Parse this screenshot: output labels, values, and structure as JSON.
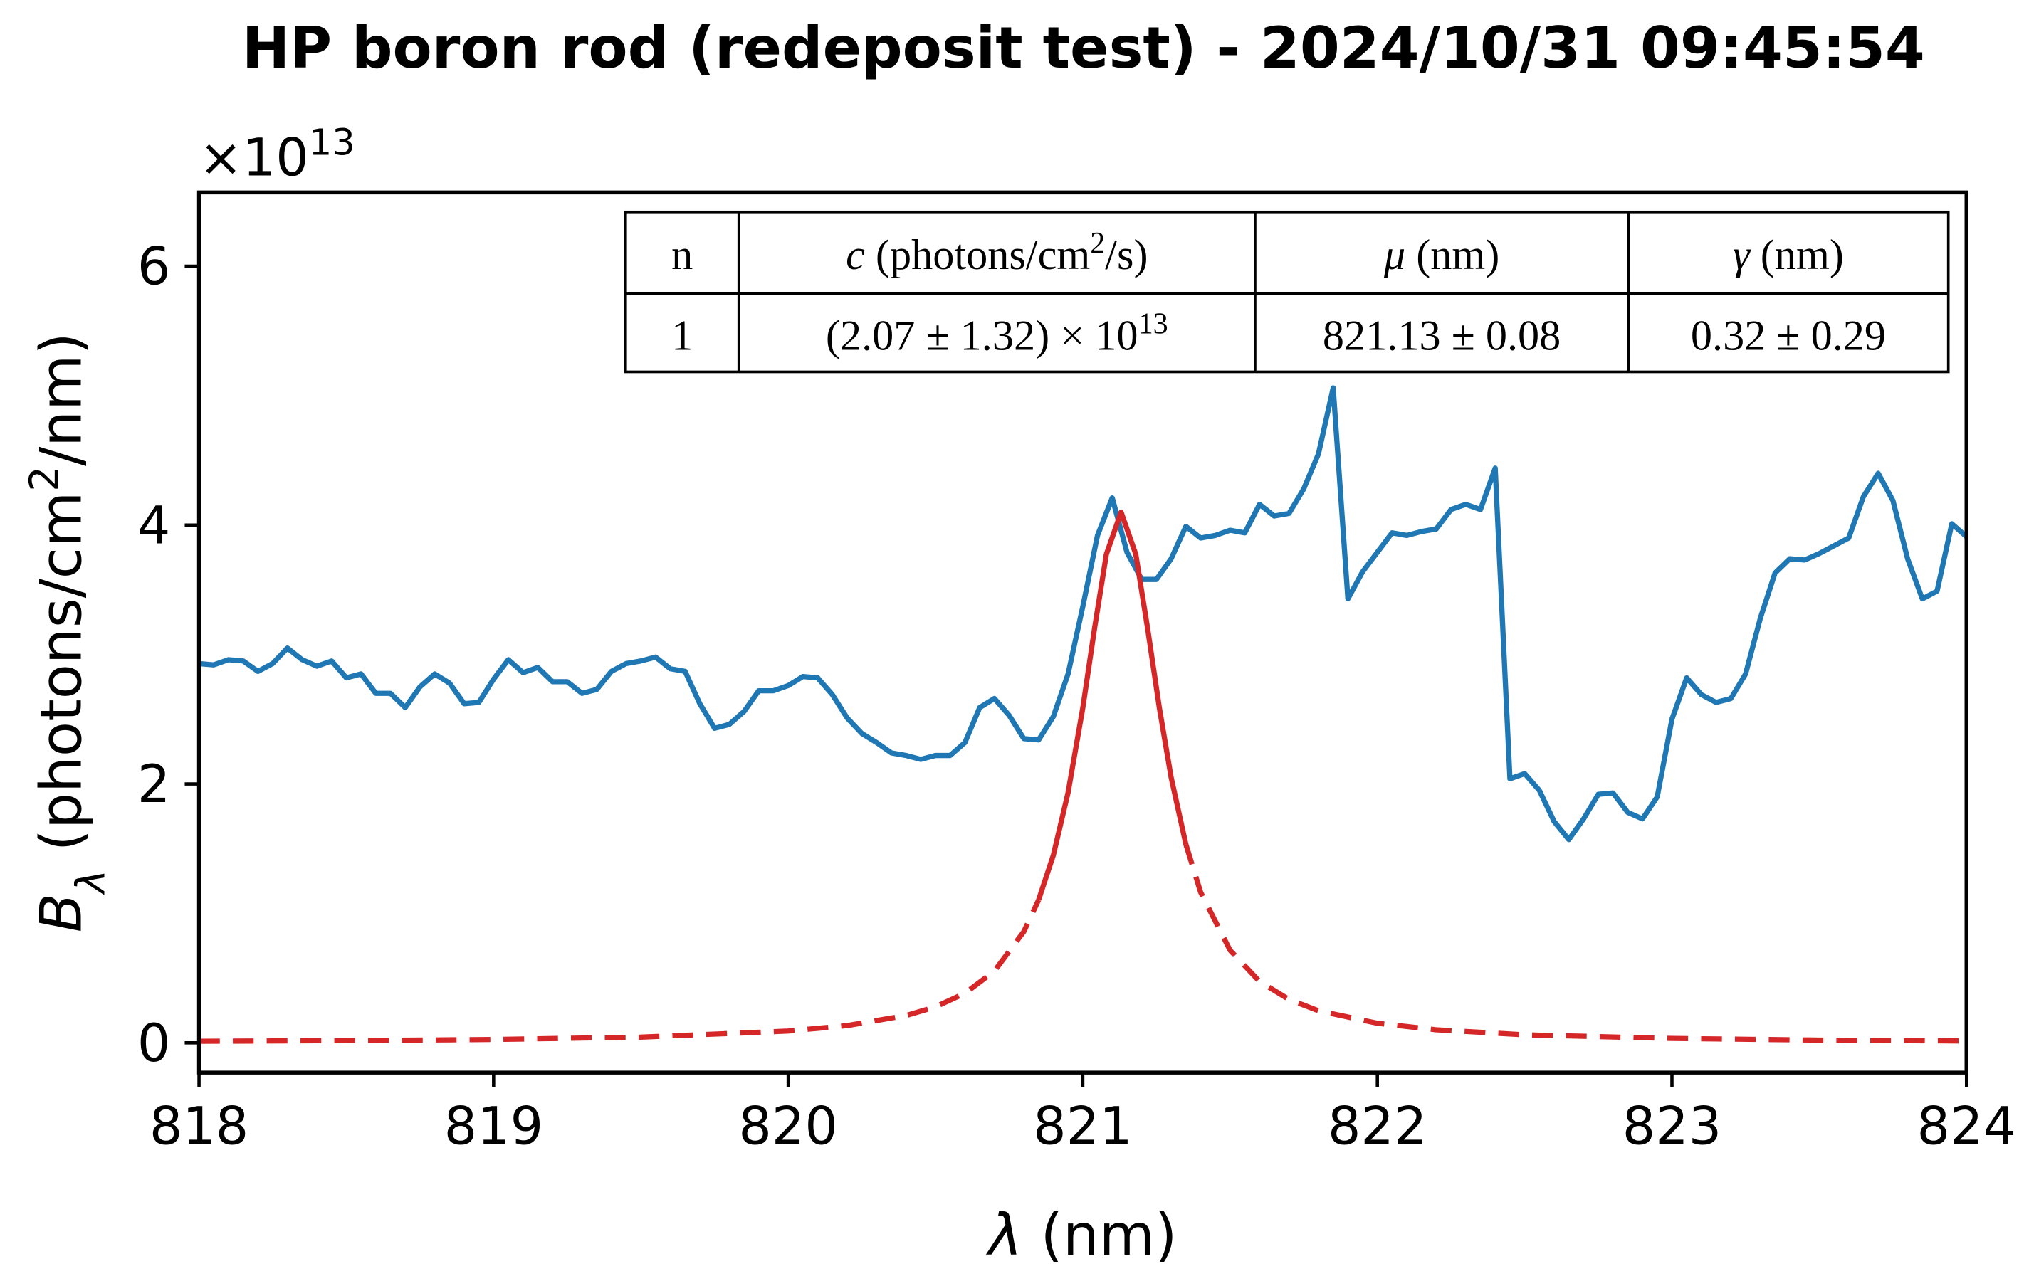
{
  "chart_data": {
    "type": "line",
    "title": "HP boron rod (redeposit test) - 2024/10/31 09:45:54",
    "x_label": {
      "symbol": "λ",
      "text": " (nm)"
    },
    "y_label": {
      "symbol": "B",
      "sub": "λ",
      "pre": " (photons/cm",
      "sup": "2",
      "post": "/nm)"
    },
    "y_offset": {
      "text": "×10",
      "sup": "13"
    },
    "xlim": [
      818,
      824
    ],
    "xticks": [
      818,
      819,
      820,
      821,
      822,
      823,
      824
    ],
    "ylim": [
      -0.23,
      6.57
    ],
    "yticks": [
      0,
      2,
      4,
      6
    ],
    "series": [
      {
        "color": "#1f77b4",
        "dash": false,
        "x": [
          818,
          818.05,
          818.1,
          818.15,
          818.2,
          818.25,
          818.3,
          818.35,
          818.4,
          818.45,
          818.5,
          818.55,
          818.6,
          818.65,
          818.7,
          818.75,
          818.8,
          818.85,
          818.9,
          818.95,
          819,
          819.05,
          819.1,
          819.15,
          819.2,
          819.25,
          819.3,
          819.35,
          819.4,
          819.45,
          819.5,
          819.55,
          819.6,
          819.65,
          819.7,
          819.75,
          819.8,
          819.85,
          819.9,
          819.95,
          820,
          820.05,
          820.1,
          820.15,
          820.2,
          820.25,
          820.3,
          820.35,
          820.4,
          820.45,
          820.5,
          820.55,
          820.6,
          820.65,
          820.7,
          820.75,
          820.8,
          820.85,
          820.9,
          820.95,
          821,
          821.05,
          821.1,
          821.15,
          821.2,
          821.25,
          821.3,
          821.35,
          821.4,
          821.45,
          821.5,
          821.55,
          821.6,
          821.65,
          821.7,
          821.75,
          821.8,
          821.85,
          821.9,
          821.95,
          822,
          822.05,
          822.1,
          822.15,
          822.2,
          822.25,
          822.3,
          822.35,
          822.4,
          822.45,
          822.5,
          822.55,
          822.6,
          822.65,
          822.7,
          822.75,
          822.8,
          822.85,
          822.9,
          822.95,
          823,
          823.05,
          823.1,
          823.15,
          823.2,
          823.25,
          823.3,
          823.35,
          823.4,
          823.45,
          823.5,
          823.55,
          823.6,
          823.65,
          823.7,
          823.75,
          823.8,
          823.85,
          823.9,
          823.95,
          824
        ],
        "values": [
          2.93,
          2.92,
          2.96,
          2.95,
          2.87,
          2.93,
          3.05,
          2.96,
          2.91,
          2.95,
          2.82,
          2.85,
          2.7,
          2.7,
          2.59,
          2.75,
          2.85,
          2.78,
          2.62,
          2.63,
          2.81,
          2.96,
          2.86,
          2.9,
          2.79,
          2.79,
          2.7,
          2.73,
          2.87,
          2.93,
          2.95,
          2.98,
          2.89,
          2.87,
          2.62,
          2.43,
          2.46,
          2.56,
          2.72,
          2.72,
          2.76,
          2.83,
          2.82,
          2.69,
          2.51,
          2.39,
          2.32,
          2.24,
          2.22,
          2.19,
          2.22,
          2.22,
          2.32,
          2.59,
          2.66,
          2.53,
          2.35,
          2.34,
          2.52,
          2.85,
          3.37,
          3.92,
          4.21,
          3.79,
          3.58,
          3.58,
          3.74,
          3.99,
          3.9,
          3.92,
          3.96,
          3.94,
          4.16,
          4.07,
          4.09,
          4.28,
          4.55,
          5.06,
          3.43,
          3.64,
          3.79,
          3.94,
          3.92,
          3.95,
          3.97,
          4.12,
          4.16,
          4.12,
          4.44,
          2.04,
          2.08,
          1.95,
          1.71,
          1.57,
          1.73,
          1.92,
          1.93,
          1.78,
          1.73,
          1.9,
          2.5,
          2.82,
          2.69,
          2.63,
          2.66,
          2.85,
          3.28,
          3.63,
          3.74,
          3.73,
          3.78,
          3.84,
          3.9,
          4.22,
          4.4,
          4.19,
          3.74,
          3.43,
          3.49,
          4.01,
          3.91
        ]
      },
      {
        "color": "#d62728",
        "dash": true,
        "x": [
          818,
          818.5,
          819,
          819.5,
          820,
          820.2,
          820.4,
          820.5,
          820.6,
          820.7,
          820.8,
          820.85,
          820.9,
          820.95,
          821,
          821.04,
          821.08,
          821.13,
          821.18,
          821.22,
          821.26,
          821.3,
          821.35,
          821.4,
          821.5,
          821.6,
          821.7,
          821.8,
          822,
          822.2,
          822.5,
          823,
          823.5,
          824
        ],
        "values": [
          0.012,
          0.017,
          0.026,
          0.044,
          0.091,
          0.133,
          0.211,
          0.278,
          0.383,
          0.554,
          0.86,
          1.104,
          null,
          null,
          null,
          null,
          null,
          null,
          null,
          null,
          null,
          null,
          1.533,
          1.164,
          0.715,
          0.474,
          0.335,
          0.248,
          0.151,
          0.101,
          0.062,
          0.034,
          0.021,
          0.014
        ]
      },
      {
        "color": "#d62728",
        "dash": false,
        "x": [
          818,
          818.5,
          819,
          819.5,
          820,
          820.2,
          820.4,
          820.5,
          820.6,
          820.7,
          820.8,
          820.85,
          820.9,
          820.95,
          821,
          821.04,
          821.08,
          821.13,
          821.18,
          821.22,
          821.26,
          821.3,
          821.35,
          821.4,
          821.5,
          821.6,
          821.7,
          821.8,
          822,
          822.2,
          822.5,
          823,
          823.5,
          824
        ],
        "values": [
          null,
          null,
          null,
          null,
          null,
          null,
          null,
          null,
          null,
          null,
          null,
          1.104,
          1.449,
          1.933,
          2.587,
          3.203,
          3.774,
          4.1,
          3.774,
          3.203,
          2.587,
          2.05,
          1.533,
          null,
          null,
          null,
          null,
          null,
          null,
          null,
          null,
          null,
          null,
          null
        ]
      }
    ],
    "table": {
      "header": [
        "n",
        {
          "symbol": "c",
          "pre": " (photons/cm",
          "sup": "2",
          "post": "/s)"
        },
        {
          "symbol": "μ",
          "text": " (nm)"
        },
        {
          "symbol": "γ",
          "text": " (nm)"
        }
      ],
      "rows": [
        [
          "1",
          {
            "text": "(2.07 ± 1.32) × 10",
            "sup": "13"
          },
          "821.13 ± 0.08",
          "0.32 ± 0.29"
        ]
      ]
    }
  }
}
